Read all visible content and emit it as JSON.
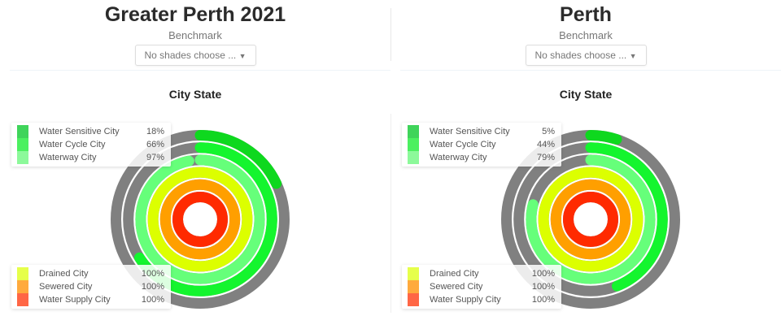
{
  "panels": [
    {
      "title": "Greater Perth 2021",
      "benchmark_label": "Benchmark",
      "dropdown": "No shades choose ...",
      "chart_title": "City State"
    },
    {
      "title": "Perth",
      "benchmark_label": "Benchmark",
      "dropdown": "No shades choose ...",
      "chart_title": "City State"
    }
  ],
  "chart_data": [
    {
      "type": "radial-bar",
      "title": "City State",
      "categories": [
        "Water Sensitive City",
        "Water Cycle City",
        "Waterway City",
        "Drained City",
        "Sewered City",
        "Water Supply City"
      ],
      "values": [
        18,
        66,
        97,
        100,
        100,
        100
      ],
      "value_labels": [
        "18%",
        "66%",
        "97%",
        "100%",
        "100%",
        "100%"
      ]
    },
    {
      "type": "radial-bar",
      "title": "City State",
      "categories": [
        "Water Sensitive City",
        "Water Cycle City",
        "Waterway City",
        "Drained City",
        "Sewered City",
        "Water Supply City"
      ],
      "values": [
        5,
        44,
        79,
        100,
        100,
        100
      ],
      "value_labels": [
        "5%",
        "44%",
        "79%",
        "100%",
        "100%",
        "100%"
      ]
    }
  ],
  "ring_colors": [
    "#0ed81e",
    "#14f52e",
    "#66ff7a",
    "#dcff00",
    "#ff9f00",
    "#ff2a00"
  ],
  "legend_colors": [
    "#3fd45a",
    "#4cf060",
    "#8cf99a",
    "#e6ff4a",
    "#ffaa3d",
    "#ff6645"
  ],
  "track_color": "#808080"
}
